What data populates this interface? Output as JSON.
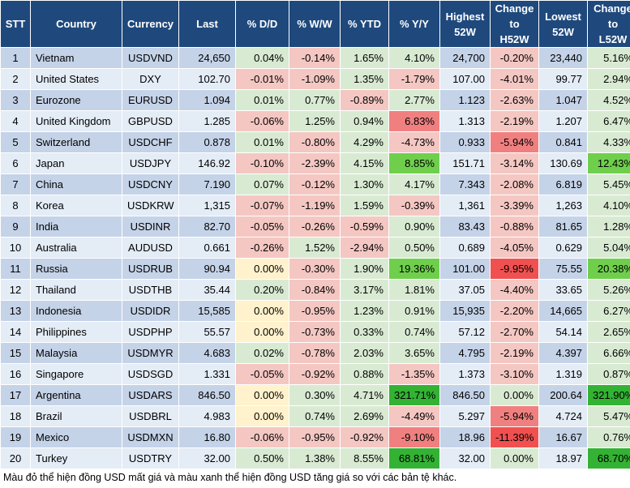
{
  "headers": [
    "STT",
    "Country",
    "Currency",
    "Last",
    "% D/D",
    "% W/W",
    "% YTD",
    "% Y/Y",
    "Highest|52W",
    "Change|to|H52W",
    "Lowest|52W",
    "Change|to|L52W"
  ],
  "rows": [
    [
      "1",
      "Vietnam",
      "USDVND",
      "24,650",
      "0.04%",
      "-0.14%",
      "1.65%",
      "4.10%",
      "24,700",
      "-0.20%",
      "23,440",
      "5.16%"
    ],
    [
      "2",
      "United States",
      "DXY",
      "102.70",
      "-0.01%",
      "-1.09%",
      "1.35%",
      "-1.79%",
      "107.00",
      "-4.01%",
      "99.77",
      "2.94%"
    ],
    [
      "3",
      "Eurozone",
      "EURUSD",
      "1.094",
      "0.01%",
      "0.77%",
      "-0.89%",
      "2.77%",
      "1.123",
      "-2.63%",
      "1.047",
      "4.52%"
    ],
    [
      "4",
      "United Kingdom",
      "GBPUSD",
      "1.285",
      "-0.06%",
      "1.25%",
      "0.94%",
      "6.83%",
      "1.313",
      "-2.19%",
      "1.207",
      "6.47%"
    ],
    [
      "5",
      "Switzerland",
      "USDCHF",
      "0.878",
      "0.01%",
      "-0.80%",
      "4.29%",
      "-4.73%",
      "0.933",
      "-5.94%",
      "0.841",
      "4.33%"
    ],
    [
      "6",
      "Japan",
      "USDJPY",
      "146.92",
      "-0.10%",
      "-2.39%",
      "4.15%",
      "8.85%",
      "151.71",
      "-3.14%",
      "130.69",
      "12.43%"
    ],
    [
      "7",
      "China",
      "USDCNY",
      "7.190",
      "0.07%",
      "-0.12%",
      "1.30%",
      "4.17%",
      "7.343",
      "-2.08%",
      "6.819",
      "5.45%"
    ],
    [
      "8",
      "Korea",
      "USDKRW",
      "1,315",
      "-0.07%",
      "-1.19%",
      "1.59%",
      "-0.39%",
      "1,361",
      "-3.39%",
      "1,263",
      "4.10%"
    ],
    [
      "9",
      "India",
      "USDINR",
      "82.70",
      "-0.05%",
      "-0.26%",
      "-0.59%",
      "0.90%",
      "83.43",
      "-0.88%",
      "81.65",
      "1.28%"
    ],
    [
      "10",
      "Australia",
      "AUDUSD",
      "0.661",
      "-0.26%",
      "1.52%",
      "-2.94%",
      "0.50%",
      "0.689",
      "-4.05%",
      "0.629",
      "5.04%"
    ],
    [
      "11",
      "Russia",
      "USDRUB",
      "90.94",
      "0.00%",
      "-0.30%",
      "1.90%",
      "19.36%",
      "101.00",
      "-9.95%",
      "75.55",
      "20.38%"
    ],
    [
      "12",
      "Thailand",
      "USDTHB",
      "35.44",
      "0.20%",
      "-0.84%",
      "3.17%",
      "1.81%",
      "37.05",
      "-4.40%",
      "33.65",
      "5.26%"
    ],
    [
      "13",
      "Indonesia",
      "USDIDR",
      "15,585",
      "0.00%",
      "-0.95%",
      "1.23%",
      "0.91%",
      "15,935",
      "-2.20%",
      "14,665",
      "6.27%"
    ],
    [
      "14",
      "Philippines",
      "USDPHP",
      "55.57",
      "0.00%",
      "-0.73%",
      "0.33%",
      "0.74%",
      "57.12",
      "-2.70%",
      "54.14",
      "2.65%"
    ],
    [
      "15",
      "Malaysia",
      "USDMYR",
      "4.683",
      "0.02%",
      "-0.78%",
      "2.03%",
      "3.65%",
      "4.795",
      "-2.19%",
      "4.397",
      "6.66%"
    ],
    [
      "16",
      "Singapore",
      "USDSGD",
      "1.331",
      "-0.05%",
      "-0.92%",
      "0.88%",
      "-1.35%",
      "1.373",
      "-3.10%",
      "1.319",
      "0.87%"
    ],
    [
      "17",
      "Argentina",
      "USDARS",
      "846.50",
      "0.00%",
      "0.30%",
      "4.71%",
      "321.71%",
      "846.50",
      "0.00%",
      "200.64",
      "321.90%"
    ],
    [
      "18",
      "Brazil",
      "USDBRL",
      "4.983",
      "0.00%",
      "0.74%",
      "2.69%",
      "-4.49%",
      "5.297",
      "-5.94%",
      "4.724",
      "5.47%"
    ],
    [
      "19",
      "Mexico",
      "USDMXN",
      "16.80",
      "-0.06%",
      "-0.95%",
      "-0.92%",
      "-9.10%",
      "18.96",
      "-11.39%",
      "16.67",
      "0.76%"
    ],
    [
      "20",
      "Turkey",
      "USDTRY",
      "32.00",
      "0.50%",
      "1.38%",
      "8.55%",
      "68.81%",
      "32.00",
      "0.00%",
      "18.97",
      "68.70%"
    ]
  ],
  "note": "Màu đỏ thể hiện đồng USD mất giá và màu xanh thể hiện đồng USD tăng giá so với các bản tệ khác."
}
